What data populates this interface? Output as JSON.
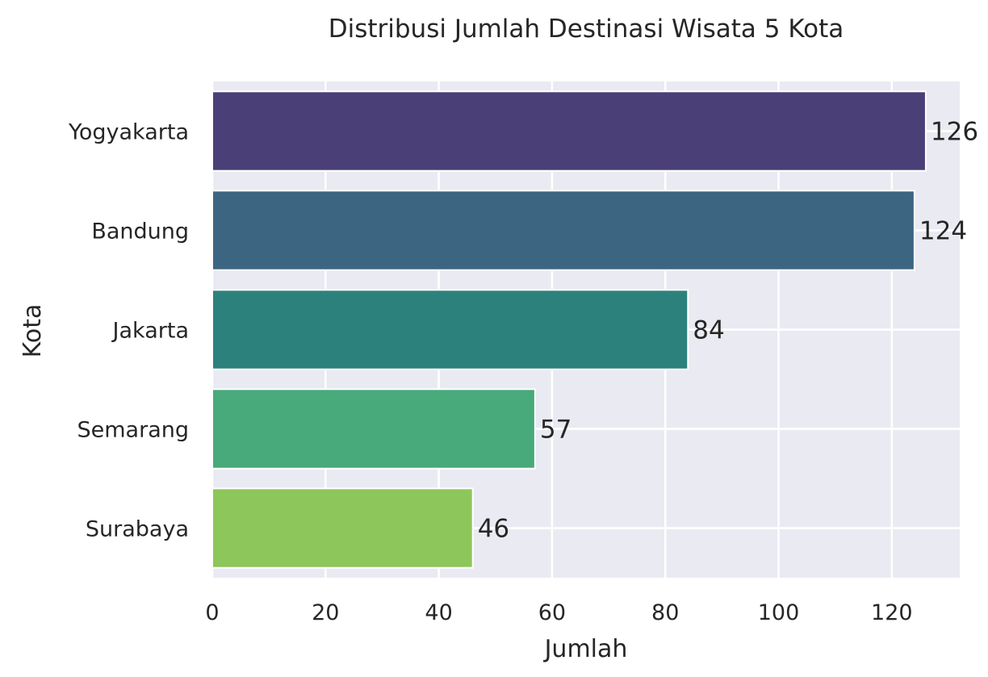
{
  "chart_data": {
    "type": "bar",
    "orientation": "horizontal",
    "title": "Distribusi Jumlah Destinasi Wisata 5 Kota",
    "xlabel": "Jumlah",
    "ylabel": "Kota",
    "categories": [
      "Yogyakarta",
      "Bandung",
      "Jakarta",
      "Semarang",
      "Surabaya"
    ],
    "values": [
      126,
      124,
      84,
      57,
      46
    ],
    "colors": [
      "#4b3f77",
      "#3c6582",
      "#2d817d",
      "#48a97a",
      "#8dc65a"
    ],
    "xlim": [
      0,
      132
    ],
    "xticks": [
      0,
      20,
      40,
      60,
      80,
      100,
      120
    ],
    "grid": true,
    "value_labels": true
  }
}
